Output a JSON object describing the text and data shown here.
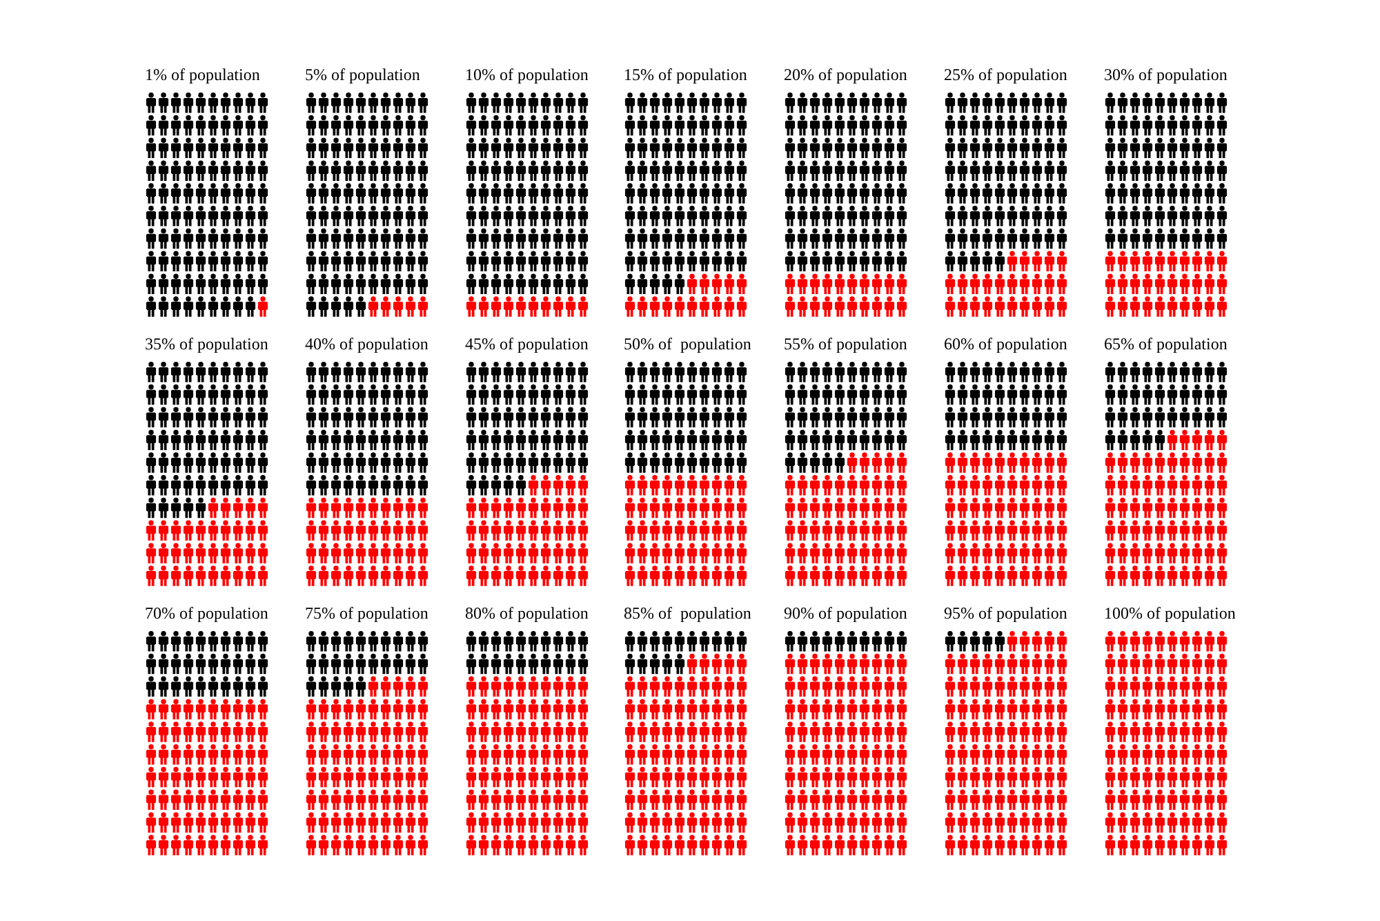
{
  "chart_data": [
    {
      "type": "other",
      "title": "of population",
      "values": [
        1
      ],
      "value_labels": [
        "1%"
      ],
      "color": "#ff0000"
    },
    {
      "type": "other",
      "title": "of population",
      "values": [
        5
      ],
      "value_labels": [
        "5%"
      ],
      "color": "#ff0000"
    },
    {
      "type": "other",
      "title": "of population",
      "values": [
        10
      ],
      "value_labels": [
        "10%"
      ],
      "color": "#ff0000"
    },
    {
      "type": "other",
      "title": "of population",
      "values": [
        15
      ],
      "value_labels": [
        "15%"
      ],
      "color": "#ff0000"
    },
    {
      "type": "other",
      "title": "of population",
      "values": [
        20
      ],
      "value_labels": [
        "20%"
      ],
      "color": "#ff0000"
    },
    {
      "type": "other",
      "title": "of population",
      "values": [
        25
      ],
      "value_labels": [
        "25%"
      ],
      "color": "#ff0000"
    },
    {
      "type": "other",
      "title": "of population",
      "values": [
        30
      ],
      "value_labels": [
        "30%"
      ],
      "color": "#ff0000"
    },
    {
      "type": "other",
      "title": "of population",
      "values": [
        35
      ],
      "value_labels": [
        "35%"
      ],
      "color": "#ff0000"
    },
    {
      "type": "other",
      "title": "of population",
      "values": [
        40
      ],
      "value_labels": [
        "40%"
      ],
      "color": "#ff0000"
    },
    {
      "type": "other",
      "title": "of population",
      "values": [
        45
      ],
      "value_labels": [
        "45%"
      ],
      "color": "#ff0000"
    },
    {
      "type": "other",
      "title": "of  population",
      "values": [
        50
      ],
      "value_labels": [
        "50%"
      ],
      "color": "#ff0000"
    },
    {
      "type": "other",
      "title": "of population",
      "values": [
        55
      ],
      "value_labels": [
        "55%"
      ],
      "color": "#ff0000"
    },
    {
      "type": "other",
      "title": "of population",
      "values": [
        60
      ],
      "value_labels": [
        "60%"
      ],
      "color": "#ff0000"
    },
    {
      "type": "other",
      "title": "of population",
      "values": [
        65
      ],
      "value_labels": [
        "65%"
      ],
      "color": "#ff0000"
    },
    {
      "type": "other",
      "title": "of population",
      "values": [
        70
      ],
      "value_labels": [
        "70%"
      ],
      "color": "#ff0000"
    },
    {
      "type": "other",
      "title": "of population",
      "values": [
        75
      ],
      "value_labels": [
        "75%"
      ],
      "color": "#ff0000"
    },
    {
      "type": "other",
      "title": "of population",
      "values": [
        80
      ],
      "value_labels": [
        "80%"
      ],
      "color": "#ff0000"
    },
    {
      "type": "other",
      "title": "of  population",
      "values": [
        85
      ],
      "value_labels": [
        "85%"
      ],
      "color": "#ff0000"
    },
    {
      "type": "other",
      "title": "of population",
      "values": [
        90
      ],
      "value_labels": [
        "90%"
      ],
      "color": "#ff0000"
    },
    {
      "type": "other",
      "title": "of population",
      "values": [
        95
      ],
      "value_labels": [
        "95%"
      ],
      "color": "#ff0000"
    },
    {
      "type": "other",
      "title": "of population",
      "values": [
        100
      ],
      "value_labels": [
        "100%"
      ],
      "color": "#ff0000"
    }
  ]
}
